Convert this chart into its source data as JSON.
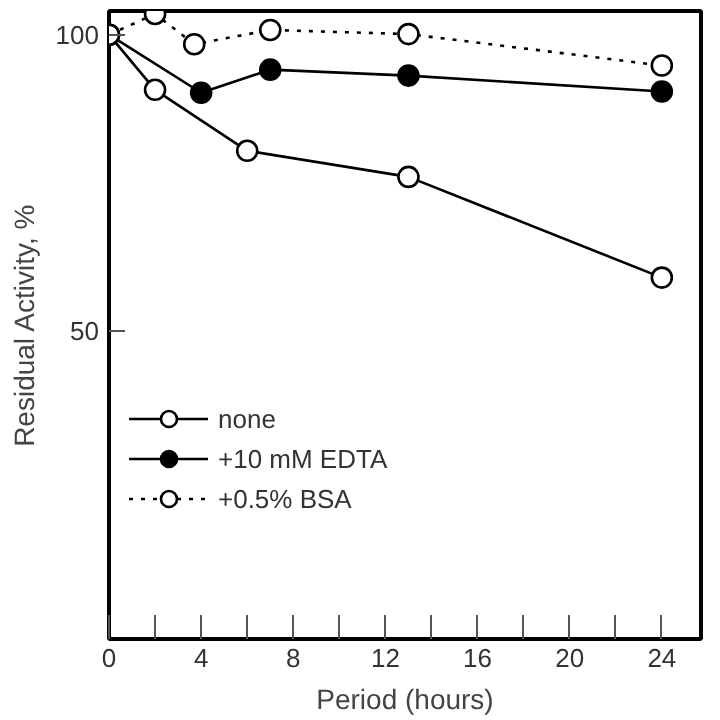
{
  "chart_data": {
    "type": "line",
    "xlabel": "Period (hours)",
    "ylabel": "Residual Activity, %",
    "xlim": [
      0,
      25.7
    ],
    "ylim": [
      -2,
      104
    ],
    "xticks": [
      0,
      {
        "value": 2,
        "label": null
      },
      4,
      {
        "value": 6,
        "label": null
      },
      8,
      {
        "value": 10,
        "label": null
      },
      12,
      {
        "value": 14,
        "label": null
      },
      16,
      {
        "value": 18,
        "label": null
      },
      20,
      {
        "value": 22,
        "label": null
      },
      24
    ],
    "yticks": [
      50,
      100
    ],
    "grid": false,
    "legend": "left",
    "marker": "circle",
    "series": [
      {
        "name": "none",
        "color": "#ffffff",
        "line_style": "solid",
        "x": [
          0,
          2,
          6,
          13,
          24
        ],
        "values": [
          100,
          90.7,
          80.4,
          76.0,
          59.0
        ]
      },
      {
        "name": "+10 mM EDTA",
        "color": "#000000",
        "line_style": "solid",
        "x": [
          0,
          4,
          7,
          13,
          24
        ],
        "values": [
          100,
          90.2,
          94.1,
          93.1,
          90.4
        ]
      },
      {
        "name": "+0.5% BSA",
        "color": "#ffffff",
        "line_style": "dotted",
        "x": [
          0,
          2,
          3.7,
          7,
          13,
          24
        ],
        "values": [
          100,
          103.5,
          98.4,
          100.8,
          100.1,
          94.8
        ]
      }
    ]
  }
}
